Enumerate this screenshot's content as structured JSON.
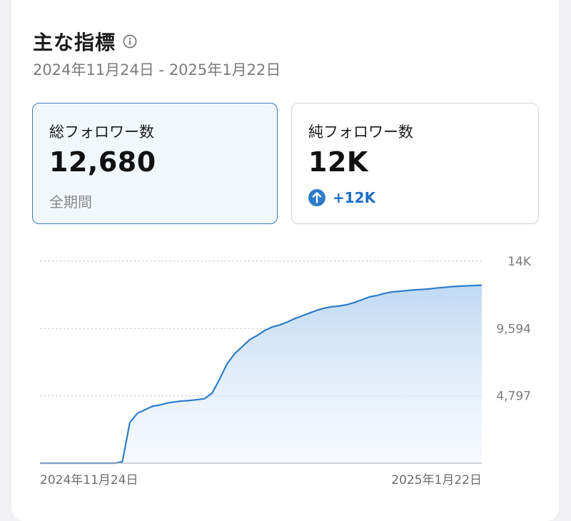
{
  "header": {
    "title": "主な指標",
    "info_icon": "info-circle-icon",
    "date_range": "2024年11月24日 - 2025年1月22日"
  },
  "metrics": [
    {
      "label": "総フォロワー数",
      "value": "12,680",
      "sub": "全期間",
      "selected": true
    },
    {
      "label": "純フォロワー数",
      "value": "12K",
      "change": "+12K",
      "change_icon": "arrow-up-circle-icon",
      "selected": false
    }
  ],
  "colors": {
    "accent": "#2f7cc8",
    "selected_border": "#3d7cc4",
    "selected_bg": "#f2f7fb",
    "change_text": "#1f6fc5"
  },
  "chart_data": {
    "type": "area",
    "x_start": "2024年11月24日",
    "x_end": "2025年1月22日",
    "y_ticks": [
      "14K",
      "9,594",
      "4,797"
    ],
    "y_tick_values": [
      14391,
      9594,
      4797
    ],
    "ylim": [
      0,
      14391
    ],
    "grid": true,
    "days": 60,
    "values": [
      0,
      0,
      0,
      0,
      0,
      0,
      0,
      0,
      0,
      0,
      0,
      100,
      2900,
      3550,
      3800,
      4050,
      4150,
      4280,
      4370,
      4430,
      4470,
      4530,
      4600,
      5000,
      6000,
      7100,
      7800,
      8300,
      8800,
      9100,
      9450,
      9700,
      9850,
      10050,
      10300,
      10500,
      10700,
      10900,
      11050,
      11150,
      11200,
      11300,
      11450,
      11650,
      11850,
      11950,
      12100,
      12200,
      12250,
      12300,
      12350,
      12380,
      12420,
      12480,
      12530,
      12580,
      12610,
      12640,
      12660,
      12680
    ]
  }
}
